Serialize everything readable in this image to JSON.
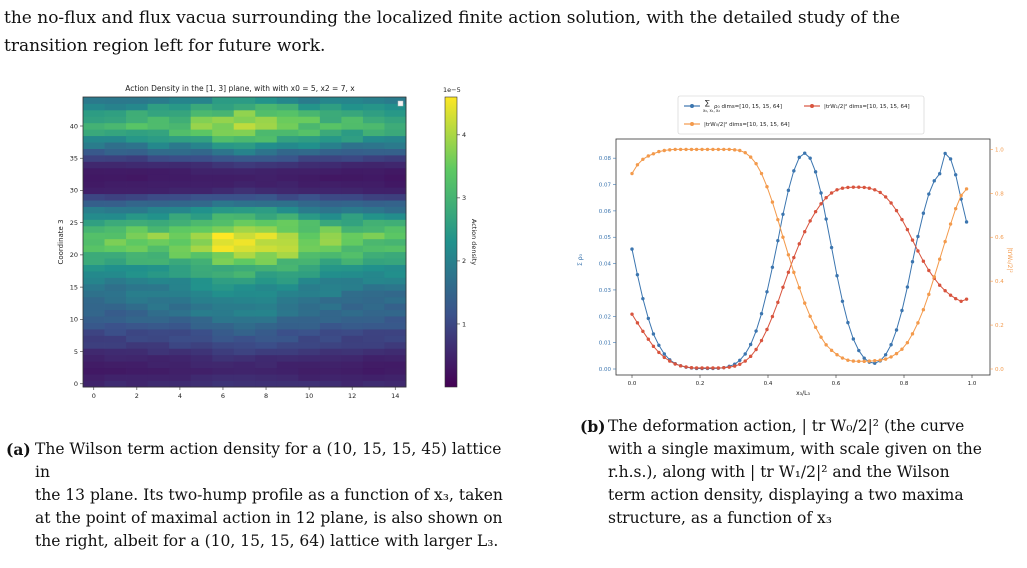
{
  "paragraph": {
    "line1": "the no-flux and flux vacua surrounding the localized finite action solution, with the detailed study of the",
    "line2": "transition region left for future work."
  },
  "figure_a": {
    "caption_label": "(a)",
    "caption_text": "The Wilson term action density for a (10, 15, 15, 45) lattice in the 13 plane. Its two-hump profile as a function of x₃, taken at the point of maximal action in 12 plane, is also shown on the right, albeit for a (10, 15, 15, 64) lattice with larger L₃.",
    "caption_lines": [
      "The Wilson term action density for a (10, 15, 15, 45) lattice in",
      "the 13 plane. Its two-hump profile as a function of x₃, taken",
      "at the point of maximal action in 12 plane, is also shown on",
      "the right, albeit for a (10, 15, 15, 64) lattice with larger L₃."
    ]
  },
  "figure_b": {
    "caption_label": "(b)",
    "caption_lines": [
      "The deformation action, | tr W₀/2|² (the curve",
      "with a single maximum, with scale given on the",
      "r.h.s.), along with | tr W₁/2|² and the Wilson",
      "term action density, displaying a two maxima",
      "structure, as a function of x₃"
    ]
  },
  "chart_data": [
    {
      "type": "heatmap",
      "title": "Action Density in the [1, 3] plane, with with x0 = 5, x2 = 7, x",
      "xlabel": "Coordinate 1",
      "ylabel": "Coordinate 3",
      "colorbar_label": "Action density",
      "colorbar_scale": "1e−5",
      "colorbar_ticks": [
        "1",
        "2",
        "3",
        "4"
      ],
      "colorbar_range": [
        0,
        4.6
      ],
      "x_ticks": [
        "0",
        "2",
        "4",
        "6",
        "8",
        "10",
        "12",
        "14"
      ],
      "y_ticks": [
        "0",
        "5",
        "10",
        "15",
        "20",
        "25",
        "30",
        "35",
        "40"
      ],
      "x_range": [
        0,
        14
      ],
      "y_range": [
        0,
        44
      ],
      "colormap": "viridis",
      "row_profile_1e-5": [
        0.6,
        0.5,
        0.4,
        0.45,
        0.55,
        0.7,
        0.9,
        1.0,
        1.1,
        1.3,
        1.45,
        1.6,
        1.7,
        1.8,
        1.9,
        2.0,
        2.1,
        2.3,
        2.5,
        2.9,
        3.3,
        3.55,
        3.7,
        3.65,
        3.4,
        3.0,
        2.5,
        2.0,
        1.5,
        1.0,
        0.5,
        0.4,
        0.35,
        0.4,
        0.6,
        1.0,
        1.5,
        2.0,
        2.5,
        2.9,
        3.2,
        3.1,
        2.8,
        2.4,
        2.0
      ],
      "column_profile": [
        0.9,
        0.92,
        0.95,
        0.98,
        1.02,
        1.1,
        1.18,
        1.24,
        1.18,
        1.12,
        1.04,
        0.98,
        0.95,
        0.92,
        0.9
      ],
      "max_cell": {
        "x": 7,
        "y": 22,
        "value_1e-5": 4.5
      }
    },
    {
      "type": "line",
      "xlabel": "x₃/L₃",
      "ylabel_left": "Σ ρ₀",
      "ylabel_right": "|trW₀/2|²",
      "x_ticks": [
        "0.0",
        "0.2",
        "0.4",
        "0.6",
        "0.8",
        "1.0"
      ],
      "y_ticks_left": [
        "0.00",
        "0.01",
        "0.02",
        "0.03",
        "0.04",
        "0.05",
        "0.06",
        "0.07",
        "0.08"
      ],
      "y_ticks_right": [
        "0.0",
        "0.2",
        "0.4",
        "0.6",
        "0.8",
        "1.0"
      ],
      "xlim": [
        0,
        1
      ],
      "ylim_left": [
        0,
        0.085
      ],
      "ylim_right": [
        0,
        1.02
      ],
      "legend": {
        "placement": "top",
        "entries": [
          "Σ ρ₀ dims=[10, 15, 15, 64]",
          "|trW₁/2|² dims=[10, 15, 15, 64]",
          "|trW₀/2|² dims=[10, 15, 15, 64]"
        ],
        "sum_subscript": "x₀, x₁, x₂",
        "sum_label": "ρ₀ dims=[10, 15, 15, 64]",
        "w1_label": "|trW₁/2|² dims=[10, 15, 15, 64]",
        "w0_label": "|trW₀/2|² dims=[10, 15, 15, 64]"
      },
      "series": [
        {
          "name": "Σ ρ₀ dims=[10, 15, 15, 64]",
          "axis": "left",
          "color": "#3b75af",
          "x": [
            0.0,
            0.016,
            0.032,
            0.048,
            0.063,
            0.079,
            0.095,
            0.111,
            0.127,
            0.143,
            0.159,
            0.175,
            0.19,
            0.206,
            0.222,
            0.238,
            0.254,
            0.27,
            0.286,
            0.302,
            0.317,
            0.333,
            0.349,
            0.365,
            0.381,
            0.397,
            0.413,
            0.429,
            0.444,
            0.46,
            0.476,
            0.492,
            0.508,
            0.524,
            0.54,
            0.556,
            0.571,
            0.587,
            0.603,
            0.619,
            0.635,
            0.651,
            0.667,
            0.683,
            0.698,
            0.714,
            0.73,
            0.746,
            0.762,
            0.778,
            0.794,
            0.81,
            0.825,
            0.841,
            0.857,
            0.873,
            0.889,
            0.905,
            0.921,
            0.937,
            0.952,
            0.968,
            0.984
          ],
          "y": [
            0.0455,
            0.0358,
            0.0267,
            0.0192,
            0.0133,
            0.009,
            0.0057,
            0.0035,
            0.002,
            0.0012,
            0.0007,
            0.0004,
            0.0002,
            0.0002,
            0.0002,
            0.0002,
            0.0003,
            0.0005,
            0.001,
            0.0018,
            0.0033,
            0.0057,
            0.0093,
            0.0144,
            0.021,
            0.0293,
            0.0386,
            0.0487,
            0.0587,
            0.0678,
            0.0752,
            0.0803,
            0.0819,
            0.08,
            0.0748,
            0.0668,
            0.0569,
            0.0461,
            0.0354,
            0.0257,
            0.0176,
            0.0114,
            0.007,
            0.0041,
            0.0026,
            0.0022,
            0.0031,
            0.0054,
            0.0092,
            0.0148,
            0.0222,
            0.0311,
            0.0407,
            0.0503,
            0.0591,
            0.0664,
            0.0714,
            0.0741,
            0.0818,
            0.0797,
            0.0737,
            0.0645,
            0.0558
          ]
        },
        {
          "name": "|trW₁/2|² dims=[10, 15, 15, 64]",
          "axis": "left",
          "color": "#d8543e",
          "x": [
            0.0,
            0.016,
            0.032,
            0.048,
            0.063,
            0.079,
            0.095,
            0.111,
            0.127,
            0.143,
            0.159,
            0.175,
            0.19,
            0.206,
            0.222,
            0.238,
            0.254,
            0.27,
            0.286,
            0.302,
            0.317,
            0.333,
            0.349,
            0.365,
            0.381,
            0.397,
            0.413,
            0.429,
            0.444,
            0.46,
            0.476,
            0.492,
            0.508,
            0.524,
            0.54,
            0.556,
            0.571,
            0.587,
            0.603,
            0.619,
            0.635,
            0.651,
            0.667,
            0.683,
            0.698,
            0.714,
            0.73,
            0.746,
            0.762,
            0.778,
            0.794,
            0.81,
            0.825,
            0.841,
            0.857,
            0.873,
            0.889,
            0.905,
            0.921,
            0.937,
            0.952,
            0.968,
            0.984
          ],
          "y": [
            0.0208,
            0.0175,
            0.0143,
            0.0113,
            0.0086,
            0.0063,
            0.0044,
            0.003,
            0.0019,
            0.0012,
            0.0008,
            0.0005,
            0.0004,
            0.0004,
            0.0004,
            0.0004,
            0.0004,
            0.0005,
            0.0007,
            0.0011,
            0.0018,
            0.003,
            0.0048,
            0.0074,
            0.0108,
            0.015,
            0.0199,
            0.0253,
            0.031,
            0.0367,
            0.0423,
            0.0475,
            0.0521,
            0.0562,
            0.0597,
            0.0627,
            0.065,
            0.0668,
            0.068,
            0.0686,
            0.0689,
            0.069,
            0.069,
            0.0689,
            0.0686,
            0.068,
            0.067,
            0.0653,
            0.063,
            0.0601,
            0.0567,
            0.0529,
            0.0489,
            0.0448,
            0.0409,
            0.0374,
            0.0344,
            0.0318,
            0.0297,
            0.028,
            0.0267,
            0.0257,
            0.0265
          ]
        },
        {
          "name": "|trW₀/2|² dims=[10, 15, 15, 64]",
          "axis": "right",
          "color": "#f39a4c",
          "x": [
            0.0,
            0.016,
            0.032,
            0.048,
            0.063,
            0.079,
            0.095,
            0.111,
            0.127,
            0.143,
            0.159,
            0.175,
            0.19,
            0.206,
            0.222,
            0.238,
            0.254,
            0.27,
            0.286,
            0.302,
            0.317,
            0.333,
            0.349,
            0.365,
            0.381,
            0.397,
            0.413,
            0.429,
            0.444,
            0.46,
            0.476,
            0.492,
            0.508,
            0.524,
            0.54,
            0.556,
            0.571,
            0.587,
            0.603,
            0.619,
            0.635,
            0.651,
            0.667,
            0.683,
            0.698,
            0.714,
            0.73,
            0.746,
            0.762,
            0.778,
            0.794,
            0.81,
            0.825,
            0.841,
            0.857,
            0.873,
            0.889,
            0.905,
            0.921,
            0.937,
            0.952,
            0.968,
            0.984
          ],
          "y": [
            0.89,
            0.93,
            0.955,
            0.97,
            0.98,
            0.99,
            0.995,
            0.998,
            1.0,
            1.0,
            1.0,
            1.0,
            1.0,
            1.0,
            1.0,
            1.0,
            1.0,
            1.0,
            1.0,
            0.998,
            0.995,
            0.985,
            0.965,
            0.935,
            0.89,
            0.83,
            0.76,
            0.68,
            0.6,
            0.52,
            0.44,
            0.37,
            0.3,
            0.24,
            0.19,
            0.145,
            0.11,
            0.085,
            0.065,
            0.05,
            0.04,
            0.036,
            0.035,
            0.035,
            0.036,
            0.038,
            0.04,
            0.045,
            0.055,
            0.07,
            0.09,
            0.12,
            0.16,
            0.21,
            0.27,
            0.34,
            0.42,
            0.5,
            0.58,
            0.66,
            0.73,
            0.79,
            0.82
          ]
        }
      ]
    }
  ]
}
